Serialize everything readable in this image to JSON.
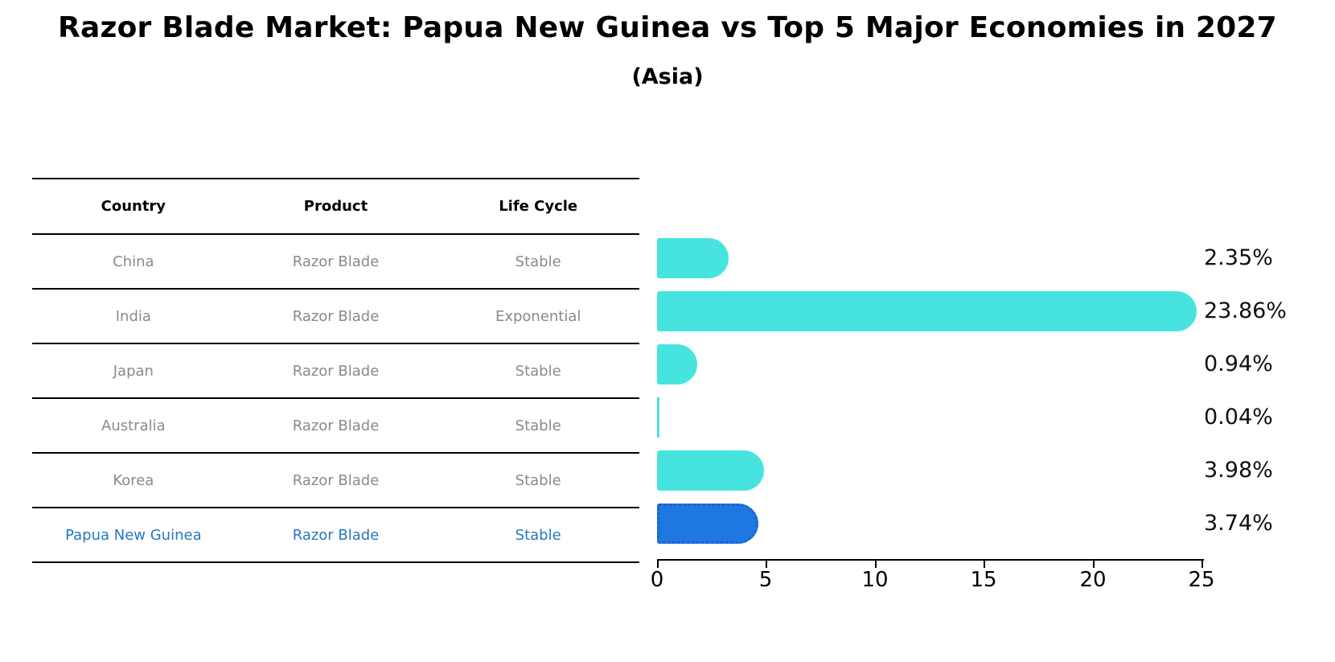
{
  "title": "Razor Blade Market: Papua New Guinea vs Top 5 Major Economies in 2027",
  "subtitle": "(Asia)",
  "table": {
    "headers": [
      "Country",
      "Product",
      "Life Cycle"
    ],
    "rows": [
      {
        "country": "China",
        "product": "Razor Blade",
        "life_cycle": "Stable",
        "highlight": false
      },
      {
        "country": "India",
        "product": "Razor Blade",
        "life_cycle": "Exponential",
        "highlight": false
      },
      {
        "country": "Japan",
        "product": "Razor Blade",
        "life_cycle": "Stable",
        "highlight": false
      },
      {
        "country": "Australia",
        "product": "Razor Blade",
        "life_cycle": "Stable",
        "highlight": false
      },
      {
        "country": "Korea",
        "product": "Razor Blade",
        "life_cycle": "Stable",
        "highlight": false
      },
      {
        "country": "Papua New Guinea",
        "product": "Razor Blade",
        "life_cycle": "Stable",
        "highlight": true
      }
    ]
  },
  "chart_data": {
    "type": "bar",
    "orientation": "horizontal",
    "title": "Razor Blade Market: Papua New Guinea vs Top 5 Major Economies in 2027 (Asia)",
    "categories": [
      "China",
      "India",
      "Japan",
      "Australia",
      "Korea",
      "Papua New Guinea"
    ],
    "values": [
      2.35,
      23.86,
      0.94,
      0.04,
      3.98,
      3.74
    ],
    "labels": [
      "2.35%",
      "23.86%",
      "0.94%",
      "0.04%",
      "3.98%",
      "3.74%"
    ],
    "xlim": [
      0,
      25
    ],
    "x_ticks": [
      0,
      5,
      10,
      15,
      20,
      25
    ],
    "grid": false,
    "legend": false,
    "highlight_index": 5
  },
  "colors": {
    "bar": "#47e4df",
    "highlight_bar": "#1e78e0",
    "highlight_border": "#1a62d2",
    "highlight_text": "#2679be",
    "table_text": "#8a8a8a",
    "axis": "#000000",
    "value_label": "#111111"
  }
}
